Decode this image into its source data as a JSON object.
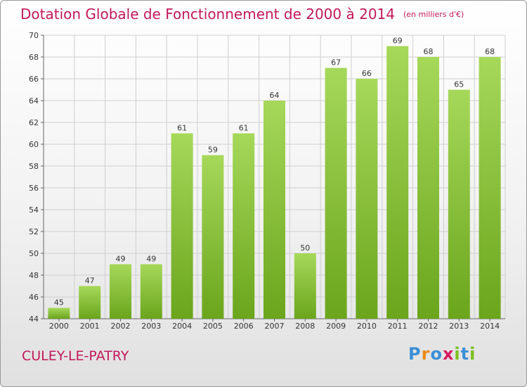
{
  "title": "Dotation Globale de Fonctionnement de 2000 à 2014",
  "unit": "(en milliers d'€)",
  "place": "CULEY-LE-PATRY",
  "logo": {
    "letters": [
      "P",
      "r",
      "o",
      "x",
      "i",
      "t",
      "i"
    ],
    "colors": [
      "#3b8fd6",
      "#e88a1a",
      "#3b8fd6",
      "#d81b60",
      "#7cbf1e",
      "#3b8fd6",
      "#7cbf1e"
    ]
  },
  "colors": {
    "bar_top": "#a6d85a",
    "bar_bottom": "#6aa51c",
    "accent": "#c2185b",
    "grid": "#cfcfcf"
  },
  "chart_data": {
    "type": "bar",
    "categories": [
      "2000",
      "2001",
      "2002",
      "2003",
      "2004",
      "2005",
      "2006",
      "2007",
      "2008",
      "2009",
      "2010",
      "2011",
      "2012",
      "2013",
      "2014"
    ],
    "values": [
      45,
      47,
      49,
      49,
      61,
      59,
      61,
      64,
      50,
      67,
      66,
      69,
      68,
      65,
      68
    ],
    "ylim": [
      44,
      70
    ],
    "yticks": [
      44,
      46,
      48,
      50,
      52,
      54,
      56,
      58,
      60,
      62,
      64,
      66,
      68,
      70
    ],
    "grid": true
  }
}
